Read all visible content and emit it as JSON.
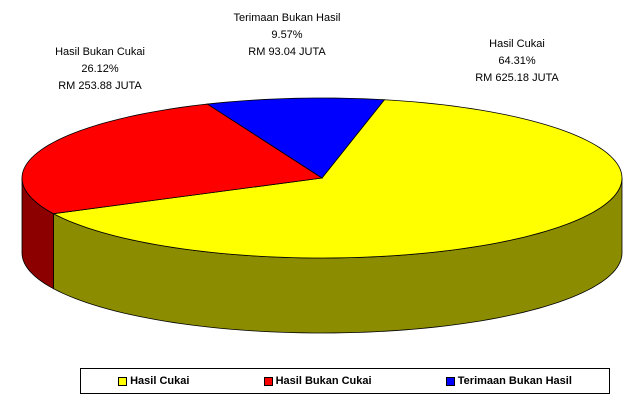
{
  "chart_data": {
    "type": "pie",
    "categories": [
      "Hasil Cukai",
      "Hasil Bukan Cukai",
      "Terimaan Bukan Hasil"
    ],
    "values": [
      64.31,
      26.12,
      9.57
    ],
    "value_labels": [
      "64.31%",
      "26.12%",
      "9.57%"
    ],
    "amount_labels": [
      "RM 625.18 JUTA",
      "RM 253.88 JUTA",
      "RM 93.04 JUTA"
    ],
    "colors": [
      "#ffff00",
      "#ff0000",
      "#0000ff"
    ],
    "legend": "bottom"
  }
}
